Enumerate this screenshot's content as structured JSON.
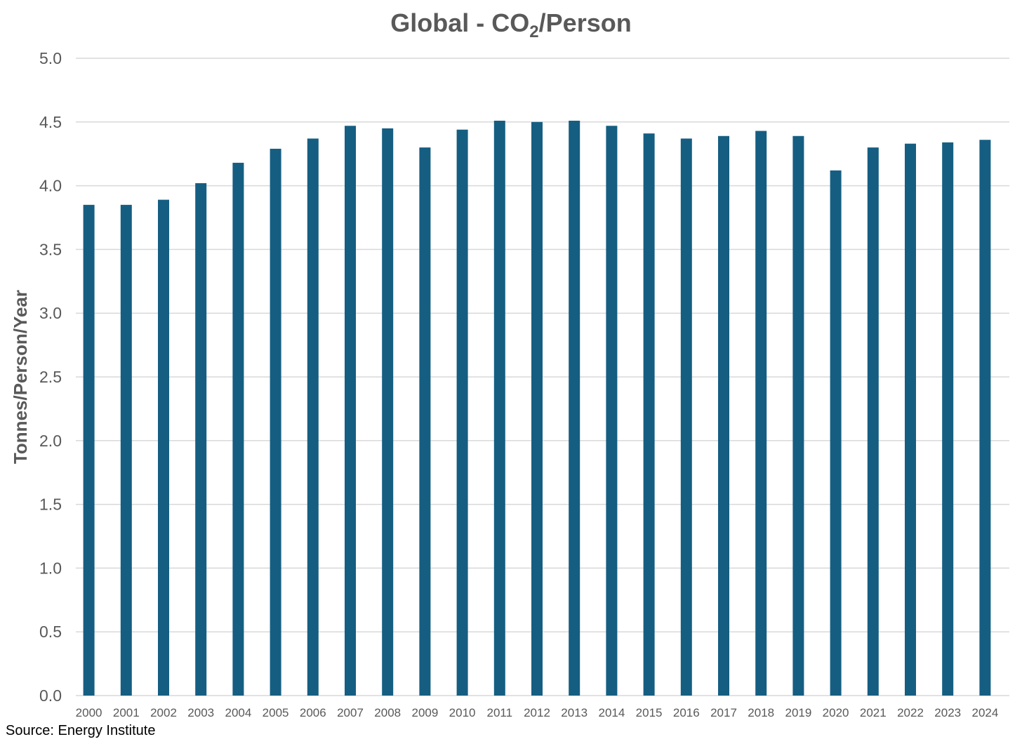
{
  "title": {
    "prefix": "Global - CO",
    "subscript": "2",
    "suffix": "/Person"
  },
  "source": "Source: Energy Institute",
  "colors": {
    "bar": "#155E82",
    "grid": "#D9D9D9",
    "tick_text": "#595959",
    "axis_label": "#595959"
  },
  "chart_data": {
    "type": "bar",
    "ylabel": "Tonnes/Person/Year",
    "ylim": [
      0,
      5.0
    ],
    "yticks": [
      "0.0",
      "0.5",
      "1.0",
      "1.5",
      "2.0",
      "2.5",
      "3.0",
      "3.5",
      "4.0",
      "4.5",
      "5.0"
    ],
    "grid": true,
    "categories": [
      "2000",
      "2001",
      "2002",
      "2003",
      "2004",
      "2005",
      "2006",
      "2007",
      "2008",
      "2009",
      "2010",
      "2011",
      "2012",
      "2013",
      "2014",
      "2015",
      "2016",
      "2017",
      "2018",
      "2019",
      "2020",
      "2021",
      "2022",
      "2023",
      "2024"
    ],
    "series": [
      {
        "values": [
          3.85,
          3.85,
          3.89,
          4.02,
          4.18,
          4.29,
          4.37,
          4.47,
          4.45,
          4.3,
          4.44,
          4.51,
          4.5,
          4.51,
          4.47,
          4.41,
          4.37,
          4.39,
          4.43,
          4.39,
          4.12,
          4.3,
          4.33,
          4.34,
          4.36
        ]
      }
    ]
  }
}
